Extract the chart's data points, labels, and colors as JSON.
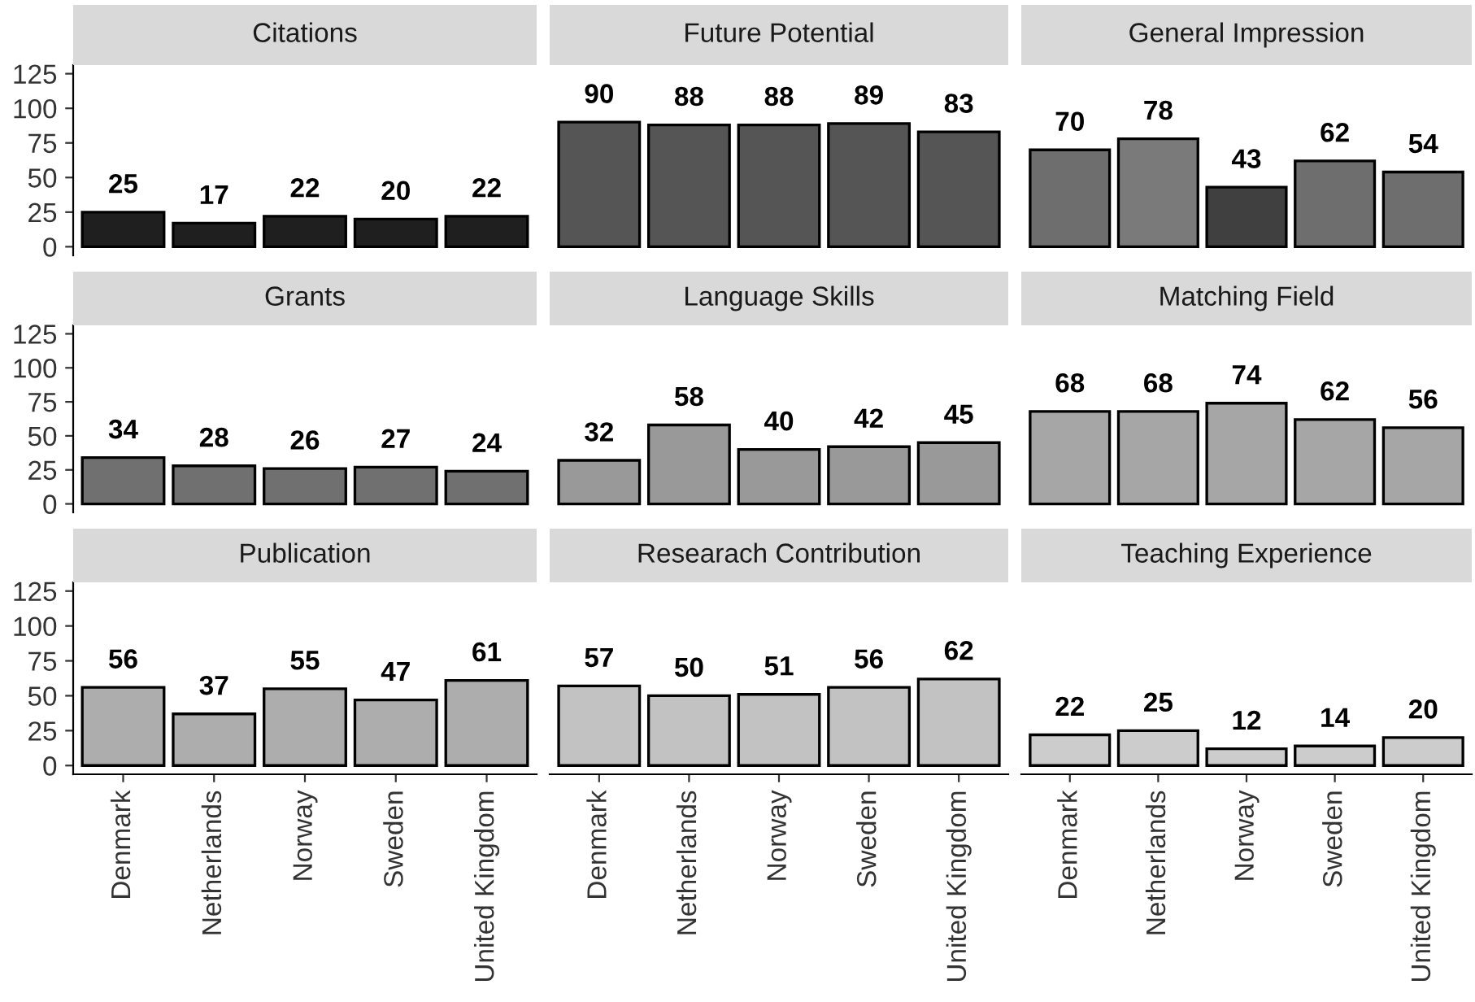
{
  "chart_data": [
    {
      "type": "bar",
      "title": "Citations",
      "categories": [
        null,
        null,
        null,
        null,
        null
      ],
      "values": [
        25,
        17,
        22,
        20,
        22
      ],
      "colors": [
        "#1f1f1f",
        "#1f1f1f",
        "#1f1f1f",
        "#1f1f1f",
        "#1f1f1f"
      ],
      "ylim": [
        -6.25,
        131.25
      ],
      "yticks": [
        0,
        25,
        50,
        75,
        100,
        125
      ],
      "data_labels": true,
      "tick_labels": "y",
      "grid": false,
      "legend": false
    },
    {
      "type": "bar",
      "title": "Future Potential",
      "categories": [
        null,
        null,
        null,
        null,
        null
      ],
      "values": [
        90,
        88,
        88,
        89,
        83
      ],
      "colors": [
        "#555555",
        "#555555",
        "#555555",
        "#555555",
        "#555555"
      ],
      "data_labels": true,
      "tick_labels": false,
      "grid": false,
      "legend": false
    },
    {
      "type": "bar",
      "title": "General Impression",
      "categories": [
        null,
        null,
        null,
        null,
        null
      ],
      "values": [
        70,
        78,
        43,
        62,
        54
      ],
      "colors": [
        "#6e6e6e",
        "#7a7a7a",
        "#404040",
        "#6e6e6e",
        "#6e6e6e"
      ],
      "data_labels": true,
      "tick_labels": false,
      "grid": false,
      "legend": false
    },
    {
      "type": "bar",
      "title": "Grants",
      "categories": [
        null,
        null,
        null,
        null,
        null
      ],
      "values": [
        34,
        28,
        26,
        27,
        24
      ],
      "colors": [
        "#707070",
        "#707070",
        "#707070",
        "#707070",
        "#707070"
      ],
      "ylim": [
        -6.25,
        131.25
      ],
      "yticks": [
        0,
        25,
        50,
        75,
        100,
        125
      ],
      "data_labels": true,
      "tick_labels": "y",
      "grid": false,
      "legend": false
    },
    {
      "type": "bar",
      "title": "Language Skills",
      "categories": [
        null,
        null,
        null,
        null,
        null
      ],
      "values": [
        32,
        58,
        40,
        42,
        45
      ],
      "colors": [
        "#999999",
        "#999999",
        "#999999",
        "#999999",
        "#999999"
      ],
      "data_labels": true,
      "tick_labels": false,
      "grid": false,
      "legend": false
    },
    {
      "type": "bar",
      "title": "Matching Field",
      "categories": [
        null,
        null,
        null,
        null,
        null
      ],
      "values": [
        68,
        68,
        74,
        62,
        56
      ],
      "colors": [
        "#a6a6a6",
        "#a6a6a6",
        "#a6a6a6",
        "#a6a6a6",
        "#a6a6a6"
      ],
      "data_labels": true,
      "tick_labels": false,
      "grid": false,
      "legend": false
    },
    {
      "type": "bar",
      "title": "Publication",
      "categories": [
        "Denmark",
        "Netherlands",
        "Norway",
        "Sweden",
        "United Kingdom"
      ],
      "values": [
        56,
        37,
        55,
        47,
        61
      ],
      "colors": [
        "#adadad",
        "#adadad",
        "#adadad",
        "#adadad",
        "#adadad"
      ],
      "ylim": [
        -6.25,
        131.25
      ],
      "yticks": [
        0,
        25,
        50,
        75,
        100,
        125
      ],
      "data_labels": true,
      "grid": false,
      "legend": false
    },
    {
      "type": "bar",
      "title": "Researach Contribution",
      "categories": [
        "Denmark",
        "Netherlands",
        "Norway",
        "Sweden",
        "United Kingdom"
      ],
      "values": [
        57,
        50,
        51,
        56,
        62
      ],
      "colors": [
        "#c2c2c2",
        "#c2c2c2",
        "#c2c2c2",
        "#c2c2c2",
        "#c2c2c2"
      ],
      "data_labels": true,
      "tick_labels": "x",
      "grid": false,
      "legend": false
    },
    {
      "type": "bar",
      "title": "Teaching Experience",
      "categories": [
        "Denmark",
        "Netherlands",
        "Norway",
        "Sweden",
        "United Kingdom"
      ],
      "values": [
        22,
        25,
        12,
        14,
        20
      ],
      "colors": [
        "#cccccc",
        "#cccccc",
        "#cccccc",
        "#cccccc",
        "#cccccc"
      ],
      "data_labels": true,
      "tick_labels": "x",
      "grid": false,
      "legend": false
    }
  ]
}
